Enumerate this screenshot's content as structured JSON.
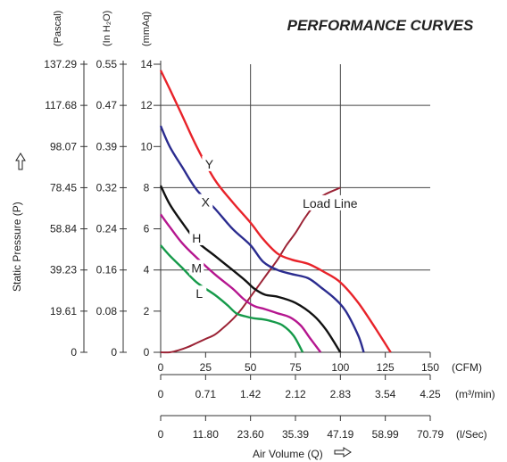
{
  "chart_data": {
    "type": "line",
    "title": "PERFORMANCE CURVES",
    "ylabel": "Static Pressure (P)",
    "xlabel": "Air Volume (Q)",
    "y_units": [
      "(Pascal)",
      "(In H₂O)",
      "(mmAq)"
    ],
    "y_ticks_pascal": [
      "0",
      "19.61",
      "39.23",
      "58.84",
      "78.45",
      "98.07",
      "117.68",
      "137.29"
    ],
    "y_ticks_inh2o": [
      "0",
      "0.08",
      "0.16",
      "0.24",
      "0.32",
      "0.39",
      "0.47",
      "0.55"
    ],
    "y_ticks_mmaq": [
      "0",
      "2",
      "4",
      "6",
      "8",
      "10",
      "12",
      "14"
    ],
    "x_units": [
      "(CFM)",
      "(m³/min)",
      "(l/Sec)"
    ],
    "x_ticks_cfm": [
      "0",
      "25",
      "50",
      "75",
      "100",
      "125",
      "150"
    ],
    "x_ticks_m3min": [
      "0",
      "0.71",
      "1.42",
      "2.12",
      "2.83",
      "3.54",
      "4.25"
    ],
    "x_ticks_lsec": [
      "0",
      "11.80",
      "23.60",
      "35.39",
      "47.19",
      "58.99",
      "70.79"
    ],
    "xlim": [
      0,
      150
    ],
    "ylim": [
      0,
      14
    ],
    "grid": true,
    "series": [
      {
        "name": "Y",
        "color": "#e8232a",
        "points": [
          [
            0,
            13.7
          ],
          [
            5,
            12.8
          ],
          [
            12,
            11.5
          ],
          [
            20,
            10
          ],
          [
            30,
            8.4
          ],
          [
            40,
            7.3
          ],
          [
            50,
            6.3
          ],
          [
            57,
            5.5
          ],
          [
            65,
            4.8
          ],
          [
            73,
            4.5
          ],
          [
            82,
            4.3
          ],
          [
            91,
            3.9
          ],
          [
            100,
            3.4
          ],
          [
            110,
            2.4
          ],
          [
            120,
            1.1
          ],
          [
            128,
            0
          ]
        ]
      },
      {
        "name": "X",
        "color": "#2b2c8f",
        "points": [
          [
            0,
            11
          ],
          [
            5,
            10
          ],
          [
            12,
            9
          ],
          [
            20,
            7.9
          ],
          [
            30,
            7
          ],
          [
            40,
            6
          ],
          [
            50,
            5.2
          ],
          [
            57,
            4.4
          ],
          [
            65,
            4
          ],
          [
            73,
            3.8
          ],
          [
            82,
            3.6
          ],
          [
            90,
            3.1
          ],
          [
            97,
            2.6
          ],
          [
            103,
            2
          ],
          [
            110,
            0.8
          ],
          [
            113,
            0
          ]
        ]
      },
      {
        "name": "H",
        "color": "#111111",
        "points": [
          [
            0,
            8.1
          ],
          [
            5,
            7.2
          ],
          [
            12,
            6.3
          ],
          [
            20,
            5.4
          ],
          [
            30,
            4.7
          ],
          [
            40,
            4
          ],
          [
            47,
            3.5
          ],
          [
            52,
            3.1
          ],
          [
            58,
            2.8
          ],
          [
            65,
            2.7
          ],
          [
            75,
            2.4
          ],
          [
            85,
            1.8
          ],
          [
            92,
            1.1
          ],
          [
            100,
            0
          ]
        ]
      },
      {
        "name": "M",
        "color": "#b5168f",
        "points": [
          [
            0,
            6.7
          ],
          [
            5,
            6.1
          ],
          [
            12,
            5.3
          ],
          [
            20,
            4.6
          ],
          [
            30,
            3.8
          ],
          [
            40,
            3.1
          ],
          [
            46,
            2.6
          ],
          [
            52,
            2.25
          ],
          [
            58,
            2.1
          ],
          [
            65,
            1.9
          ],
          [
            72,
            1.7
          ],
          [
            78,
            1.3
          ],
          [
            83,
            0.7
          ],
          [
            89,
            0
          ]
        ]
      },
      {
        "name": "L",
        "color": "#169a4a",
        "points": [
          [
            0,
            5.2
          ],
          [
            5,
            4.7
          ],
          [
            12,
            4.1
          ],
          [
            20,
            3.4
          ],
          [
            30,
            2.8
          ],
          [
            37,
            2.3
          ],
          [
            42,
            1.9
          ],
          [
            47,
            1.75
          ],
          [
            52,
            1.65
          ],
          [
            57,
            1.6
          ],
          [
            62,
            1.5
          ],
          [
            68,
            1.3
          ],
          [
            74,
            0.8
          ],
          [
            79,
            0
          ]
        ]
      }
    ],
    "load_line": {
      "name": "Load Line",
      "color": "#9b2335",
      "points": [
        [
          0,
          0
        ],
        [
          5,
          0
        ],
        [
          10,
          0.1
        ],
        [
          15,
          0.25
        ],
        [
          20,
          0.45
        ],
        [
          25,
          0.65
        ],
        [
          30,
          0.85
        ],
        [
          35,
          1.2
        ],
        [
          40,
          1.6
        ],
        [
          45,
          2.1
        ],
        [
          50,
          2.7
        ],
        [
          55,
          3.3
        ],
        [
          60,
          3.9
        ],
        [
          65,
          4.5
        ],
        [
          70,
          5.2
        ],
        [
          75,
          5.8
        ],
        [
          80,
          6.5
        ],
        [
          85,
          7.1
        ],
        [
          90,
          7.6
        ],
        [
          100,
          8
        ]
      ]
    }
  }
}
